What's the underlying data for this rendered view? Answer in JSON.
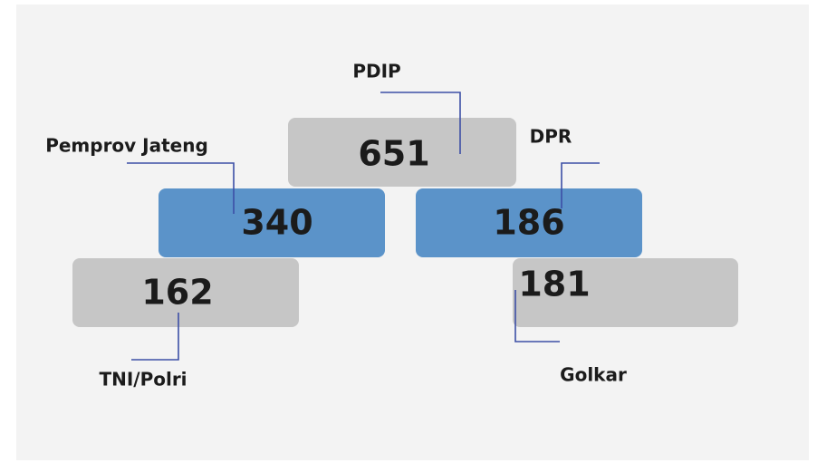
{
  "nodes": [
    {
      "label": "PDIP",
      "value": 651
    },
    {
      "label": "Pemprov Jateng",
      "value": 340
    },
    {
      "label": "DPR",
      "value": 186
    },
    {
      "label": "TNI/Polri",
      "value": 162
    },
    {
      "label": "Golkar",
      "value": 181
    }
  ]
}
